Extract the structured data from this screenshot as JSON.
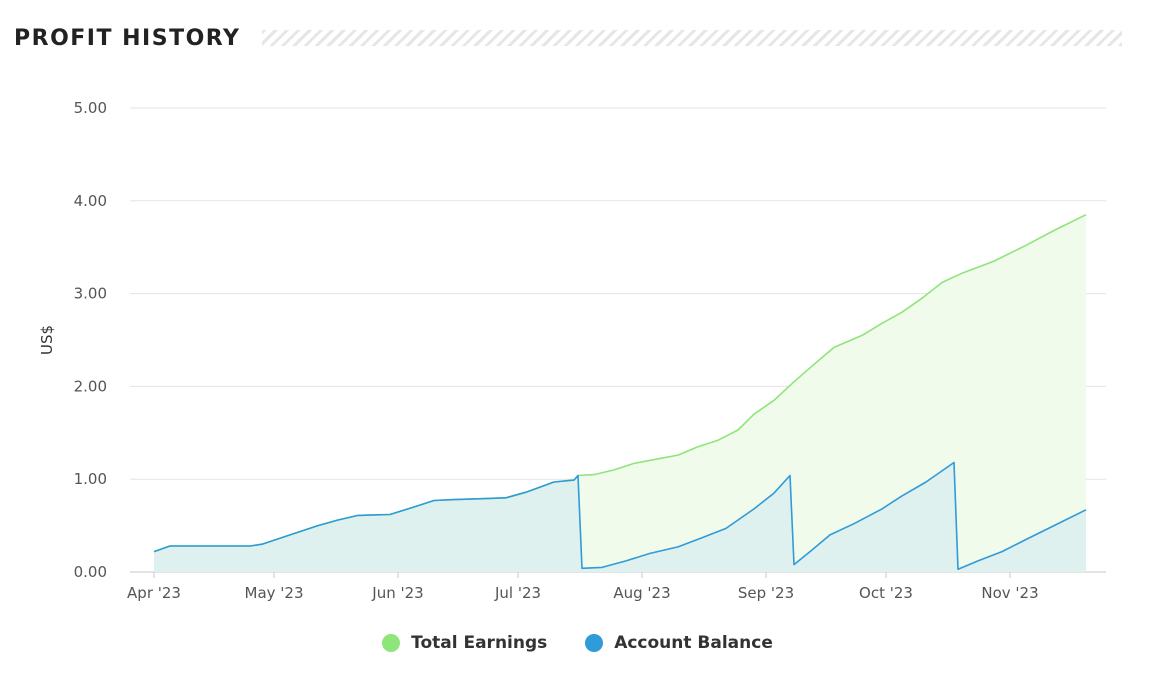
{
  "header": {
    "title": "PROFIT HISTORY"
  },
  "colors": {
    "earnings_line": "#8ee57a",
    "earnings_fill": "#f1fbec",
    "balance_line": "#2f9bd8",
    "balance_fill": "#dff1ef",
    "grid": "#e3e3e3"
  },
  "chart_data": {
    "type": "area",
    "ylabel": "US$",
    "xlabel": "",
    "ylim": [
      0,
      5
    ],
    "yticks": [
      "0.00",
      "1.00",
      "2.00",
      "3.00",
      "4.00",
      "5.00"
    ],
    "x_tick_labels": [
      "Apr '23",
      "May '23",
      "Jun '23",
      "Jul '23",
      "Aug '23",
      "Sep '23",
      "Oct '23",
      "Nov '23"
    ],
    "grid": true,
    "legend_position": "bottom",
    "series": [
      {
        "name": "Total Earnings",
        "color": "#8ee57a",
        "points": [
          [
            "2023-04-01",
            0.22
          ],
          [
            "2023-04-05",
            0.28
          ],
          [
            "2023-04-10",
            0.28
          ],
          [
            "2023-04-15",
            0.28
          ],
          [
            "2023-04-20",
            0.28
          ],
          [
            "2023-04-25",
            0.28
          ],
          [
            "2023-04-28",
            0.3
          ],
          [
            "2023-05-05",
            0.4
          ],
          [
            "2023-05-12",
            0.5
          ],
          [
            "2023-05-17",
            0.56
          ],
          [
            "2023-05-22",
            0.61
          ],
          [
            "2023-05-30",
            0.62
          ],
          [
            "2023-06-05",
            0.7
          ],
          [
            "2023-06-10",
            0.77
          ],
          [
            "2023-06-15",
            0.78
          ],
          [
            "2023-06-22",
            0.79
          ],
          [
            "2023-06-28",
            0.8
          ],
          [
            "2023-07-03",
            0.86
          ],
          [
            "2023-07-10",
            0.97
          ],
          [
            "2023-07-15",
            0.99
          ],
          [
            "2023-07-16",
            1.04
          ],
          [
            "2023-07-20",
            1.05
          ],
          [
            "2023-07-25",
            1.1
          ],
          [
            "2023-07-30",
            1.17
          ],
          [
            "2023-08-05",
            1.22
          ],
          [
            "2023-08-10",
            1.26
          ],
          [
            "2023-08-15",
            1.35
          ],
          [
            "2023-08-20",
            1.42
          ],
          [
            "2023-08-25",
            1.53
          ],
          [
            "2023-08-29",
            1.7
          ],
          [
            "2023-09-03",
            1.85
          ],
          [
            "2023-09-08",
            2.05
          ],
          [
            "2023-09-12",
            2.2
          ],
          [
            "2023-09-18",
            2.42
          ],
          [
            "2023-09-25",
            2.55
          ],
          [
            "2023-09-30",
            2.68
          ],
          [
            "2023-10-05",
            2.8
          ],
          [
            "2023-10-10",
            2.95
          ],
          [
            "2023-10-15",
            3.12
          ],
          [
            "2023-10-20",
            3.22
          ],
          [
            "2023-10-28",
            3.35
          ],
          [
            "2023-11-05",
            3.52
          ],
          [
            "2023-11-12",
            3.68
          ],
          [
            "2023-11-20",
            3.85
          ]
        ]
      },
      {
        "name": "Account Balance",
        "color": "#2f9bd8",
        "points": [
          [
            "2023-04-01",
            0.22
          ],
          [
            "2023-04-05",
            0.28
          ],
          [
            "2023-04-10",
            0.28
          ],
          [
            "2023-04-15",
            0.28
          ],
          [
            "2023-04-20",
            0.28
          ],
          [
            "2023-04-25",
            0.28
          ],
          [
            "2023-04-28",
            0.3
          ],
          [
            "2023-05-05",
            0.4
          ],
          [
            "2023-05-12",
            0.5
          ],
          [
            "2023-05-17",
            0.56
          ],
          [
            "2023-05-22",
            0.61
          ],
          [
            "2023-05-30",
            0.62
          ],
          [
            "2023-06-05",
            0.7
          ],
          [
            "2023-06-10",
            0.77
          ],
          [
            "2023-06-15",
            0.78
          ],
          [
            "2023-06-22",
            0.79
          ],
          [
            "2023-06-28",
            0.8
          ],
          [
            "2023-07-03",
            0.86
          ],
          [
            "2023-07-10",
            0.97
          ],
          [
            "2023-07-15",
            0.99
          ],
          [
            "2023-07-16",
            1.04
          ],
          [
            "2023-07-17",
            0.04
          ],
          [
            "2023-07-22",
            0.05
          ],
          [
            "2023-07-28",
            0.12
          ],
          [
            "2023-08-03",
            0.2
          ],
          [
            "2023-08-10",
            0.27
          ],
          [
            "2023-08-16",
            0.37
          ],
          [
            "2023-08-22",
            0.47
          ],
          [
            "2023-08-29",
            0.68
          ],
          [
            "2023-09-03",
            0.85
          ],
          [
            "2023-09-07",
            1.04
          ],
          [
            "2023-09-08",
            0.08
          ],
          [
            "2023-09-12",
            0.22
          ],
          [
            "2023-09-17",
            0.4
          ],
          [
            "2023-09-23",
            0.52
          ],
          [
            "2023-09-30",
            0.68
          ],
          [
            "2023-10-05",
            0.82
          ],
          [
            "2023-10-11",
            0.97
          ],
          [
            "2023-10-18",
            1.18
          ],
          [
            "2023-10-19",
            0.03
          ],
          [
            "2023-10-24",
            0.12
          ],
          [
            "2023-10-30",
            0.22
          ],
          [
            "2023-11-05",
            0.35
          ],
          [
            "2023-11-12",
            0.5
          ],
          [
            "2023-11-20",
            0.67
          ]
        ]
      }
    ]
  }
}
